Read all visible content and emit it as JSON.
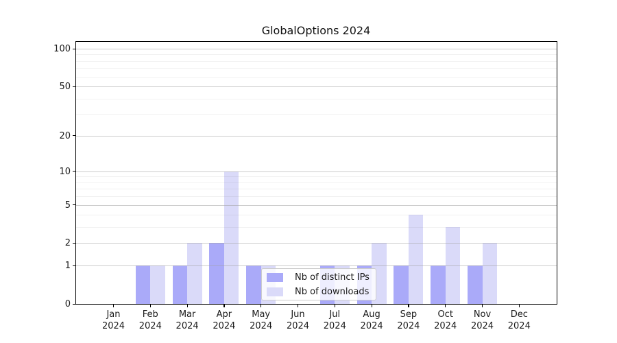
{
  "title": "GlobalOptions 2024",
  "chart_data": {
    "type": "bar",
    "title": "GlobalOptions 2024",
    "categories": [
      "Jan 2024",
      "Feb 2024",
      "Mar 2024",
      "Apr 2024",
      "May 2024",
      "Jun 2024",
      "Jul 2024",
      "Aug 2024",
      "Sep 2024",
      "Oct 2024",
      "Nov 2024",
      "Dec 2024"
    ],
    "series": [
      {
        "name": "Nb of distinct IPs",
        "color": "#aaaaf9",
        "values": [
          0,
          1,
          1,
          2,
          1,
          0,
          1,
          1,
          1,
          1,
          1,
          0
        ]
      },
      {
        "name": "Nb of downloads",
        "color": "#dadaf9",
        "values": [
          0,
          1,
          2,
          10,
          1,
          0,
          1,
          2,
          4,
          3,
          2,
          0
        ]
      }
    ],
    "yscale": "log1p",
    "ylim": [
      0,
      100
    ],
    "y_major_ticks": [
      0,
      1,
      2,
      5,
      10,
      20,
      50,
      100
    ],
    "y_minor_ticks": [
      3,
      4,
      6,
      7,
      8,
      9,
      30,
      40,
      60,
      70,
      80,
      90
    ],
    "grid": "horizontal major and minor, drawn over bars",
    "legend_position": "inside lower center",
    "colors": {
      "bar_distinct_ips": "#aaaaf9",
      "bar_downloads": "#dadaf9",
      "grid_major": "#c8c8c8",
      "grid_minor": "#e9e9e9",
      "spine": "#000000",
      "text": "#1a1a1a",
      "background": "#ffffff"
    }
  }
}
